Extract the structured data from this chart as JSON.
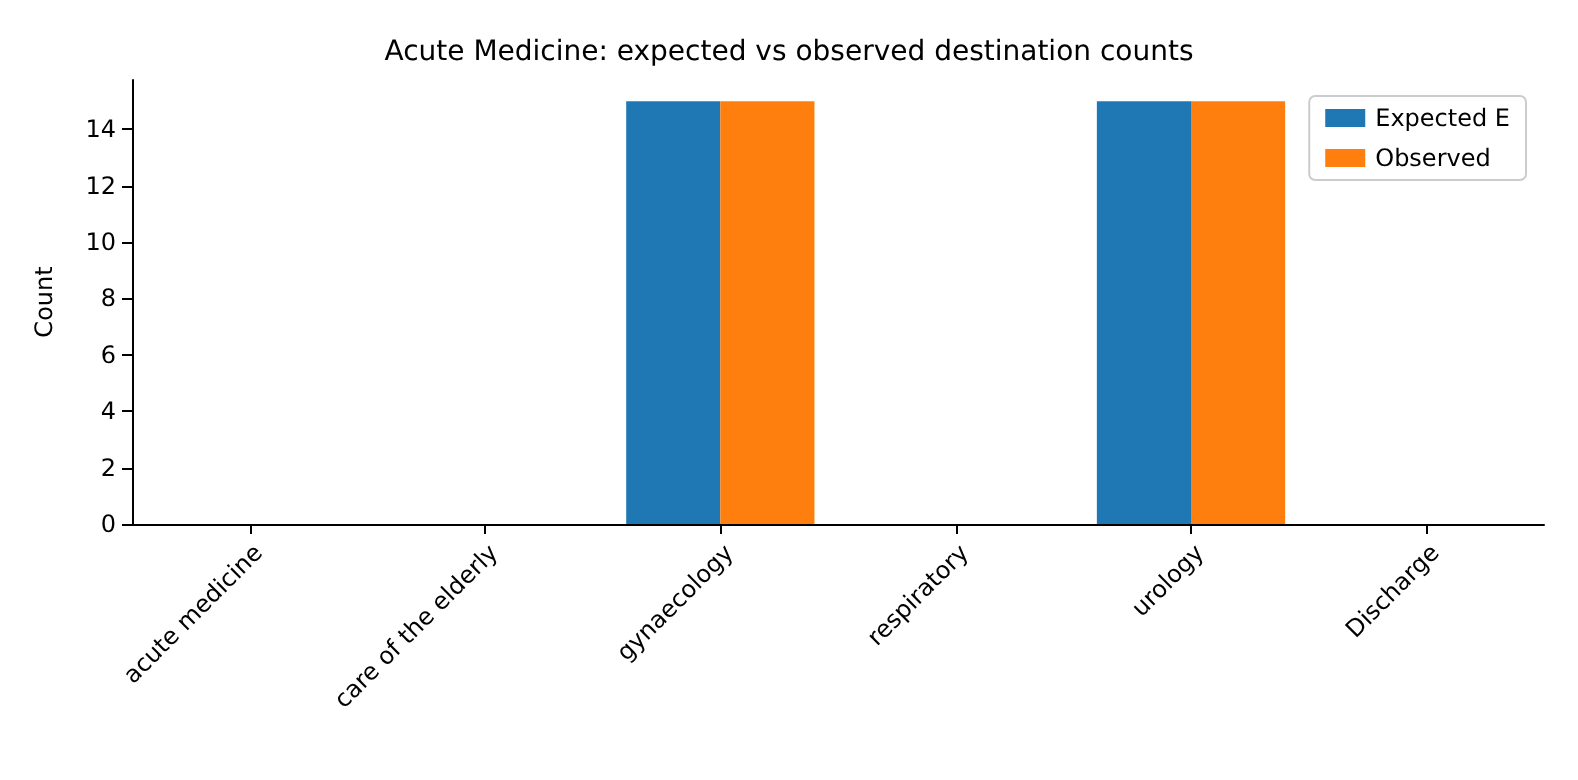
{
  "chart_data": {
    "type": "bar",
    "title": "Acute Medicine: expected vs observed destination counts",
    "ylabel": "Count",
    "categories": [
      "acute medicine",
      "care of the elderly",
      "gynaecology",
      "respiratory",
      "urology",
      "Discharge"
    ],
    "series": [
      {
        "name": "Expected E",
        "color": "#1f77b4",
        "values": [
          0,
          0,
          15,
          0,
          15,
          0
        ]
      },
      {
        "name": "Observed",
        "color": "#ff7f0e",
        "values": [
          0,
          0,
          15,
          0,
          15,
          0
        ]
      }
    ],
    "ylim": [
      0,
      15.75
    ],
    "yticks": [
      0,
      2,
      4,
      6,
      8,
      10,
      12,
      14
    ],
    "grid": false,
    "legend": "top right"
  }
}
